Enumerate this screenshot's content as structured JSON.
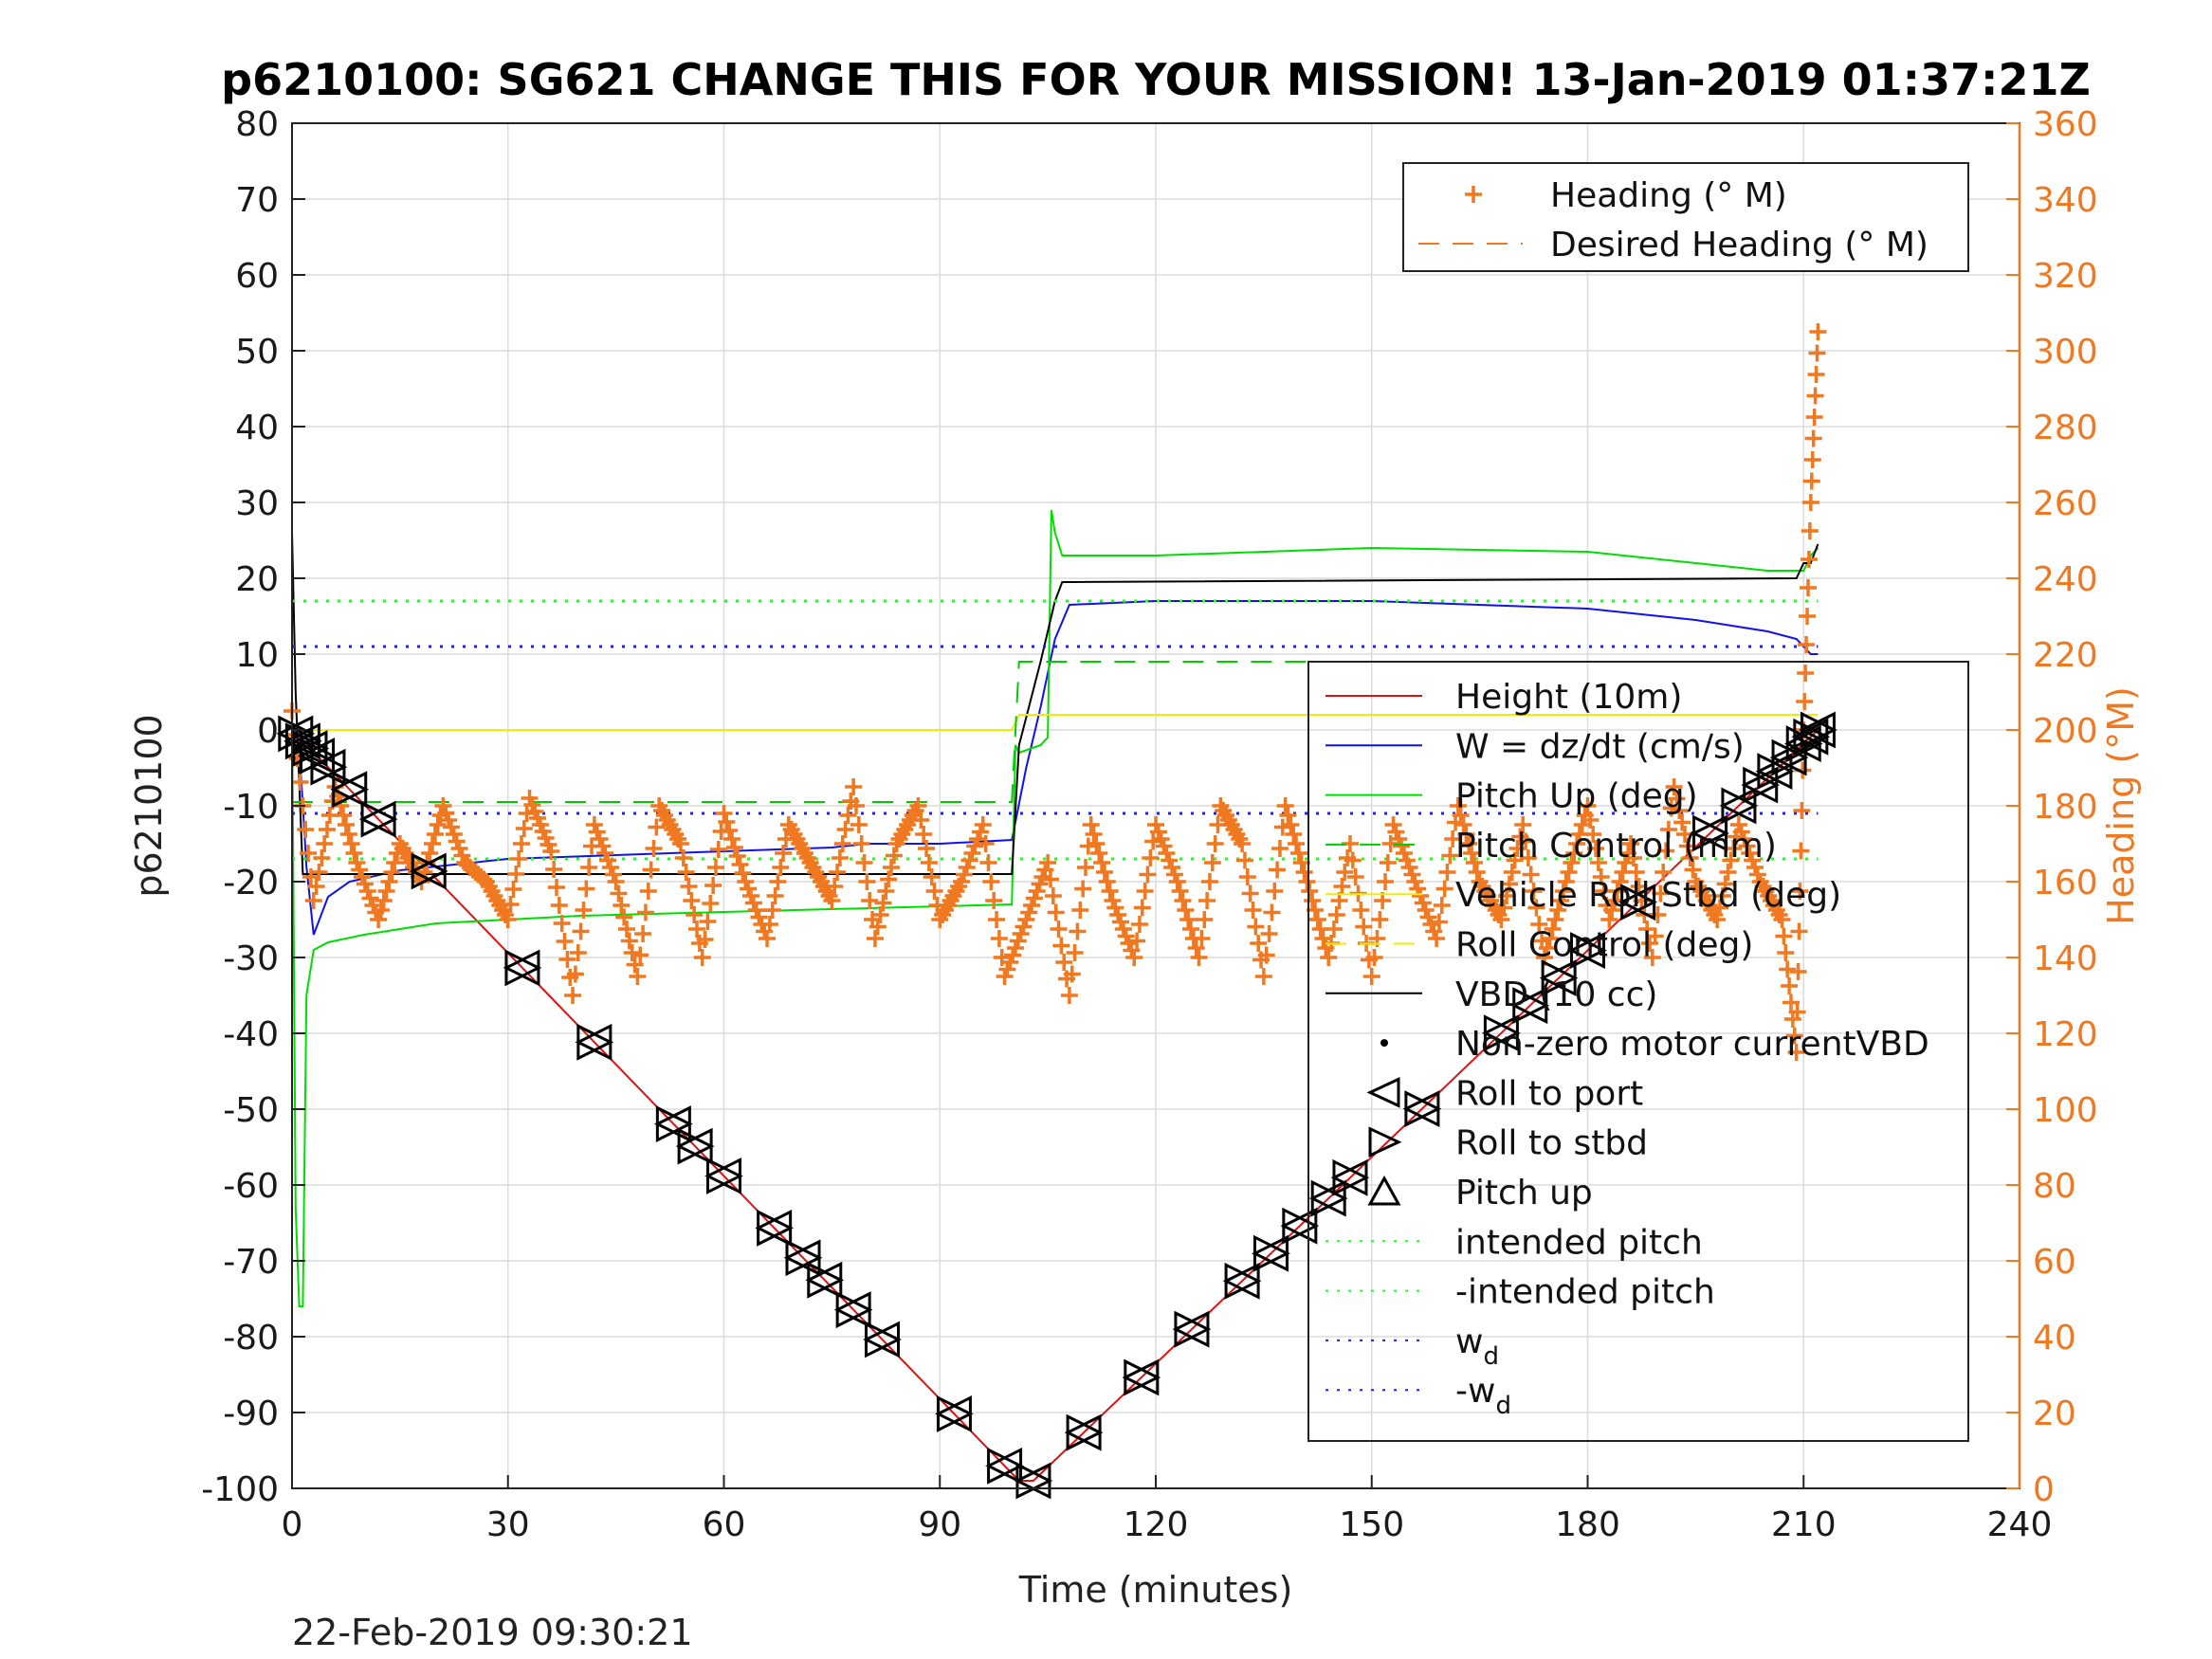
{
  "chart_data": {
    "type": "line",
    "title": "p6210100: SG621 CHANGE THIS FOR YOUR MISSION! 13-Jan-2019 01:37:21Z",
    "xlabel": "Time (minutes)",
    "ylabel": "p6210100",
    "ylabel_right": "Heading (°M)",
    "footer": "22-Feb-2019 09:30:21",
    "xlim": [
      0,
      240
    ],
    "ylim": [
      -100,
      80
    ],
    "ylim_right": [
      0,
      360
    ],
    "x_ticks": [
      0,
      30,
      60,
      90,
      120,
      150,
      180,
      210,
      240
    ],
    "y_ticks": [
      -100,
      -90,
      -80,
      -70,
      -60,
      -50,
      -40,
      -30,
      -20,
      -10,
      0,
      10,
      20,
      30,
      40,
      50,
      60,
      70,
      80
    ],
    "y_ticks_right": [
      0,
      20,
      40,
      60,
      80,
      100,
      120,
      140,
      160,
      180,
      200,
      220,
      240,
      260,
      280,
      300,
      320,
      340,
      360
    ],
    "grid": true,
    "legend_right_axis": {
      "placement": "top-right",
      "entries": [
        {
          "name": "Heading (° M)",
          "color": "#f07820",
          "marker": "+"
        },
        {
          "name": "Desired Heading (° M)",
          "color": "#f07820",
          "style": "dashed"
        }
      ]
    },
    "legend_left_axis": {
      "placement": "lower-right",
      "entries": [
        {
          "name": "Height (10m)",
          "color": "#dd1111",
          "style": "solid"
        },
        {
          "name": "W = dz/dt (cm/s)",
          "color": "#1111ee",
          "style": "solid"
        },
        {
          "name": "Pitch Up (deg)",
          "color": "#00dd00",
          "style": "solid"
        },
        {
          "name": "Pitch Control (mm)",
          "color": "#00cc00",
          "style": "dashed"
        },
        {
          "name": "Vehicle Roll Stbd (deg)",
          "color": "#eeee00",
          "style": "solid"
        },
        {
          "name": "Roll Control (deg)",
          "color": "#eeee00",
          "style": "dashed"
        },
        {
          "name": "VBD (10 cc)",
          "color": "#000000",
          "style": "solid"
        },
        {
          "name": "Non-zero motor currentVBD",
          "color": "#000000",
          "marker": "dot"
        },
        {
          "name": "Roll to port",
          "color": "#000000",
          "marker": "triangle-left"
        },
        {
          "name": "Roll to stbd",
          "color": "#000000",
          "marker": "triangle-right"
        },
        {
          "name": "Pitch up",
          "color": "#000000",
          "marker": "triangle-up"
        },
        {
          "name": "intended pitch",
          "color": "#33ee33",
          "style": "dotted"
        },
        {
          "name": "-intended pitch",
          "color": "#33ee33",
          "style": "dotted"
        },
        {
          "name": "w",
          "sub": "d",
          "color": "#2222ee",
          "style": "dotted"
        },
        {
          "name": "-w",
          "sub": "d",
          "color": "#2222ee",
          "style": "dotted"
        }
      ]
    },
    "series": [
      {
        "name": "Height (10m)",
        "color": "#dd1111",
        "x": [
          0,
          101,
          103,
          212
        ],
        "y": [
          0,
          -99,
          -99,
          0
        ]
      },
      {
        "name": "W = dz/dt (cm/s)",
        "color": "#1111ee",
        "x": [
          0,
          1,
          2,
          3,
          5,
          8,
          15,
          30,
          45,
          60,
          75,
          80,
          90,
          100,
          102,
          104,
          106,
          108,
          120,
          150,
          180,
          195,
          205,
          209,
          211,
          212
        ],
        "y": [
          0,
          -2,
          -18,
          -27,
          -22,
          -20,
          -18.5,
          -17,
          -16.5,
          -16,
          -15.5,
          -15,
          -15,
          -14.5,
          -5,
          3,
          12,
          16.5,
          17,
          17,
          16,
          14.5,
          13,
          12,
          10,
          10
        ]
      },
      {
        "name": "Pitch Up (deg)",
        "color": "#00dd00",
        "x": [
          0,
          0.5,
          1,
          1.5,
          2,
          3,
          5,
          10,
          20,
          40,
          60,
          80,
          100,
          100.5,
          101,
          104,
          105,
          105.5,
          106,
          107,
          120,
          150,
          180,
          205,
          210,
          211,
          212
        ],
        "y": [
          5,
          -63,
          -76,
          -76,
          -35,
          -29,
          -28,
          -27,
          -25.5,
          -24.5,
          -24,
          -23.5,
          -23,
          -2,
          -3,
          -2,
          -1,
          29,
          26,
          23,
          23,
          24,
          23.5,
          21,
          21,
          23,
          24
        ]
      },
      {
        "name": "VBD (10 cc)",
        "color": "#000000",
        "x": [
          0,
          0.5,
          1.5,
          3,
          100,
          101,
          104,
          106,
          107,
          209,
          210,
          211,
          212
        ],
        "y": [
          26,
          5,
          -19,
          -19,
          -19,
          -2,
          9,
          17,
          19.5,
          20,
          22,
          22,
          24.5
        ]
      },
      {
        "name": "Vehicle Roll Stbd (deg)",
        "color": "#eeee00",
        "x": [
          0,
          100,
          101,
          212
        ],
        "y": [
          0,
          0,
          2,
          2
        ]
      },
      {
        "name": "Pitch Control (mm)",
        "color": "#00cc00",
        "style": "dashed",
        "x": [
          0,
          100,
          101,
          212
        ],
        "y": [
          -9.5,
          -9.5,
          9,
          9
        ]
      },
      {
        "name": "intended pitch",
        "color": "#33ee33",
        "style": "dotted",
        "x": [
          0,
          212
        ],
        "y": [
          17,
          17
        ]
      },
      {
        "name": "-intended pitch",
        "color": "#33ee33",
        "style": "dotted",
        "x": [
          0,
          212
        ],
        "y": [
          -17,
          -17
        ]
      },
      {
        "name": "w",
        "color": "#2222ee",
        "style": "dotted",
        "x": [
          0,
          212
        ],
        "y": [
          11,
          11
        ]
      },
      {
        "name": "-w",
        "color": "#2222ee",
        "style": "dotted",
        "x": [
          0,
          212
        ],
        "y": [
          -11,
          -11
        ]
      },
      {
        "name": "Heading (° M)",
        "color": "#f07820",
        "axis": "right",
        "marker": "+",
        "x": [
          0,
          3,
          6,
          9,
          12,
          15,
          18,
          21,
          24,
          27,
          30,
          33,
          36,
          39,
          42,
          45,
          48,
          51,
          54,
          57,
          60,
          63,
          66,
          69,
          72,
          75,
          78,
          81,
          84,
          87,
          90,
          93,
          96,
          99,
          102,
          105,
          108,
          111,
          114,
          117,
          120,
          123,
          126,
          129,
          132,
          135,
          138,
          141,
          144,
          147,
          150,
          153,
          156,
          159,
          162,
          165,
          168,
          171,
          174,
          177,
          180,
          183,
          186,
          189,
          192,
          195,
          198,
          201,
          204,
          207,
          209,
          210,
          211,
          212
        ],
        "y": [
          205,
          155,
          185,
          165,
          150,
          170,
          160,
          180,
          165,
          160,
          150,
          182,
          168,
          130,
          175,
          160,
          135,
          180,
          170,
          140,
          178,
          160,
          145,
          175,
          165,
          155,
          185,
          145,
          170,
          180,
          150,
          160,
          175,
          135,
          150,
          165,
          130,
          175,
          155,
          140,
          175,
          160,
          140,
          180,
          170,
          135,
          180,
          160,
          140,
          170,
          135,
          175,
          160,
          145,
          180,
          160,
          150,
          175,
          140,
          160,
          180,
          150,
          170,
          140,
          185,
          160,
          150,
          175,
          160,
          150,
          115,
          200,
          260,
          305
        ]
      }
    ],
    "markers": {
      "roll_to_port_and_stbd_x": [
        0.5,
        1.5,
        2.5,
        3.5,
        5,
        8,
        12,
        19,
        32,
        42,
        53,
        56,
        60,
        67,
        71,
        74,
        78,
        82,
        92,
        99,
        103,
        110,
        118,
        125,
        132,
        136,
        140,
        144,
        147,
        157,
        168,
        172,
        176,
        180,
        187,
        197,
        201,
        204,
        206,
        208,
        210,
        211,
        212
      ]
    }
  }
}
